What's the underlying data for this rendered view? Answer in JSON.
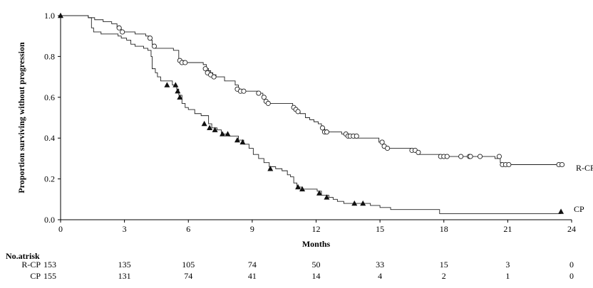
{
  "chart_data": {
    "type": "line",
    "title": "",
    "xlabel": "Months",
    "ylabel": "Proportion surviving without progression",
    "xlim": [
      0,
      24
    ],
    "ylim": [
      0,
      1.0
    ],
    "xticks": [
      0,
      3,
      6,
      9,
      12,
      15,
      18,
      21,
      24
    ],
    "xtick_labels": [
      "0",
      "3",
      "6",
      "9",
      "12",
      "15",
      "18",
      "21",
      "24"
    ],
    "yticks": [
      0,
      0.2,
      0.4,
      0.6,
      0.8,
      1.0
    ],
    "ytick_labels": [
      "0.0",
      "0.2",
      "0.4",
      "0.6",
      "0.8",
      "1.0"
    ],
    "grid": false,
    "legend": "end-of-line labels",
    "series": [
      {
        "name": "R-CP",
        "marker": "open-circle",
        "steps": [
          [
            0,
            1.0
          ],
          [
            1.3,
            0.99
          ],
          [
            1.6,
            0.98
          ],
          [
            2.0,
            0.97
          ],
          [
            2.4,
            0.96
          ],
          [
            2.65,
            0.94
          ],
          [
            2.85,
            0.92
          ],
          [
            3.5,
            0.91
          ],
          [
            4.0,
            0.9
          ],
          [
            4.15,
            0.88
          ],
          [
            4.3,
            0.86
          ],
          [
            4.45,
            0.84
          ],
          [
            5.3,
            0.83
          ],
          [
            5.55,
            0.79
          ],
          [
            5.65,
            0.78
          ],
          [
            5.8,
            0.77
          ],
          [
            6.7,
            0.76
          ],
          [
            6.85,
            0.74
          ],
          [
            6.95,
            0.73
          ],
          [
            7.05,
            0.72
          ],
          [
            7.15,
            0.71
          ],
          [
            7.3,
            0.7
          ],
          [
            7.7,
            0.68
          ],
          [
            8.2,
            0.66
          ],
          [
            8.35,
            0.64
          ],
          [
            8.45,
            0.63
          ],
          [
            9.25,
            0.62
          ],
          [
            9.5,
            0.6
          ],
          [
            9.6,
            0.58
          ],
          [
            9.8,
            0.57
          ],
          [
            10.9,
            0.55
          ],
          [
            11.05,
            0.54
          ],
          [
            11.15,
            0.53
          ],
          [
            11.25,
            0.52
          ],
          [
            11.5,
            0.5
          ],
          [
            11.7,
            0.49
          ],
          [
            11.9,
            0.48
          ],
          [
            12.1,
            0.47
          ],
          [
            12.25,
            0.45
          ],
          [
            12.4,
            0.43
          ],
          [
            13.2,
            0.42
          ],
          [
            13.6,
            0.41
          ],
          [
            13.8,
            0.4
          ],
          [
            14.2,
            0.4
          ],
          [
            14.95,
            0.38
          ],
          [
            15.15,
            0.36
          ],
          [
            15.3,
            0.35
          ],
          [
            16.45,
            0.34
          ],
          [
            16.75,
            0.32
          ],
          [
            17.85,
            0.31
          ],
          [
            20.4,
            0.3
          ],
          [
            20.65,
            0.28
          ],
          [
            20.75,
            0.27
          ],
          [
            21.2,
            0.27
          ],
          [
            23.4,
            0.27
          ]
        ],
        "end_x": 23.5,
        "censored": [
          [
            2.75,
            0.94
          ],
          [
            2.9,
            0.92
          ],
          [
            4.2,
            0.89
          ],
          [
            4.4,
            0.85
          ],
          [
            5.6,
            0.78
          ],
          [
            5.7,
            0.77
          ],
          [
            5.85,
            0.77
          ],
          [
            6.8,
            0.74
          ],
          [
            6.9,
            0.72
          ],
          [
            7.05,
            0.71
          ],
          [
            7.2,
            0.7
          ],
          [
            8.3,
            0.64
          ],
          [
            8.45,
            0.63
          ],
          [
            8.6,
            0.63
          ],
          [
            9.3,
            0.62
          ],
          [
            9.55,
            0.6
          ],
          [
            9.65,
            0.58
          ],
          [
            9.75,
            0.57
          ],
          [
            10.95,
            0.55
          ],
          [
            11.05,
            0.54
          ],
          [
            11.15,
            0.53
          ],
          [
            12.3,
            0.45
          ],
          [
            12.4,
            0.43
          ],
          [
            12.5,
            0.43
          ],
          [
            13.4,
            0.42
          ],
          [
            13.5,
            0.41
          ],
          [
            13.6,
            0.41
          ],
          [
            13.75,
            0.41
          ],
          [
            13.9,
            0.41
          ],
          [
            15.1,
            0.38
          ],
          [
            15.2,
            0.36
          ],
          [
            15.35,
            0.35
          ],
          [
            16.5,
            0.34
          ],
          [
            16.65,
            0.34
          ],
          [
            16.8,
            0.33
          ],
          [
            17.85,
            0.31
          ],
          [
            18.0,
            0.31
          ],
          [
            18.15,
            0.31
          ],
          [
            18.8,
            0.31
          ],
          [
            19.2,
            0.31
          ],
          [
            19.25,
            0.31
          ],
          [
            19.7,
            0.31
          ],
          [
            20.6,
            0.31
          ],
          [
            20.75,
            0.27
          ],
          [
            20.9,
            0.27
          ],
          [
            21.05,
            0.27
          ],
          [
            23.4,
            0.27
          ],
          [
            23.55,
            0.27
          ]
        ],
        "at_risk": [
          153,
          135,
          105,
          74,
          50,
          33,
          15,
          3,
          0
        ]
      },
      {
        "name": "CP",
        "marker": "filled-triangle",
        "steps": [
          [
            0,
            1.0
          ],
          [
            1.3,
            0.99
          ],
          [
            1.45,
            0.94
          ],
          [
            1.55,
            0.92
          ],
          [
            1.9,
            0.91
          ],
          [
            2.7,
            0.9
          ],
          [
            2.85,
            0.89
          ],
          [
            3.1,
            0.88
          ],
          [
            3.3,
            0.86
          ],
          [
            3.5,
            0.85
          ],
          [
            3.9,
            0.84
          ],
          [
            4.1,
            0.83
          ],
          [
            4.25,
            0.8
          ],
          [
            4.3,
            0.74
          ],
          [
            4.45,
            0.72
          ],
          [
            4.55,
            0.7
          ],
          [
            4.7,
            0.68
          ],
          [
            5.25,
            0.66
          ],
          [
            5.45,
            0.64
          ],
          [
            5.55,
            0.61
          ],
          [
            5.7,
            0.57
          ],
          [
            5.85,
            0.55
          ],
          [
            6.0,
            0.54
          ],
          [
            6.3,
            0.52
          ],
          [
            6.6,
            0.51
          ],
          [
            6.95,
            0.47
          ],
          [
            7.1,
            0.45
          ],
          [
            7.35,
            0.44
          ],
          [
            7.55,
            0.42
          ],
          [
            7.9,
            0.41
          ],
          [
            8.0,
            0.41
          ],
          [
            8.35,
            0.39
          ],
          [
            8.6,
            0.37
          ],
          [
            8.85,
            0.35
          ],
          [
            9.05,
            0.32
          ],
          [
            9.3,
            0.3
          ],
          [
            9.55,
            0.28
          ],
          [
            9.8,
            0.26
          ],
          [
            10.1,
            0.25
          ],
          [
            10.4,
            0.24
          ],
          [
            10.65,
            0.22
          ],
          [
            10.8,
            0.21
          ],
          [
            10.95,
            0.18
          ],
          [
            11.1,
            0.16
          ],
          [
            11.35,
            0.15
          ],
          [
            11.8,
            0.15
          ],
          [
            12.05,
            0.14
          ],
          [
            12.25,
            0.12
          ],
          [
            12.6,
            0.11
          ],
          [
            12.8,
            0.1
          ],
          [
            13.0,
            0.09
          ],
          [
            13.3,
            0.08
          ],
          [
            14.0,
            0.08
          ],
          [
            14.55,
            0.07
          ],
          [
            15.0,
            0.06
          ],
          [
            15.5,
            0.05
          ],
          [
            17.8,
            0.03
          ],
          [
            23.4,
            0.03
          ]
        ],
        "end_x": 23.5,
        "events_marked": [
          [
            0,
            1.0
          ],
          [
            5.0,
            0.66
          ],
          [
            5.4,
            0.66
          ],
          [
            5.5,
            0.63
          ],
          [
            5.6,
            0.6
          ],
          [
            6.75,
            0.47
          ],
          [
            7.0,
            0.45
          ],
          [
            7.25,
            0.44
          ],
          [
            7.6,
            0.42
          ],
          [
            7.85,
            0.42
          ],
          [
            8.3,
            0.39
          ],
          [
            8.55,
            0.38
          ],
          [
            9.85,
            0.25
          ],
          [
            11.15,
            0.16
          ],
          [
            11.35,
            0.15
          ],
          [
            12.15,
            0.13
          ],
          [
            12.5,
            0.11
          ],
          [
            13.8,
            0.08
          ],
          [
            14.2,
            0.08
          ],
          [
            23.5,
            0.04
          ]
        ],
        "at_risk": [
          155,
          131,
          74,
          41,
          14,
          4,
          2,
          1,
          0
        ]
      }
    ],
    "risk_table": {
      "title": "No.atrisk",
      "rows": [
        {
          "label": "R-CP",
          "counts": [
            "153",
            "135",
            "105",
            "74",
            "50",
            "33",
            "15",
            "3",
            "0"
          ]
        },
        {
          "label": "CP",
          "counts": [
            "155",
            "131",
            "74",
            "41",
            "14",
            "4",
            "2",
            "1",
            "0"
          ]
        }
      ]
    }
  }
}
